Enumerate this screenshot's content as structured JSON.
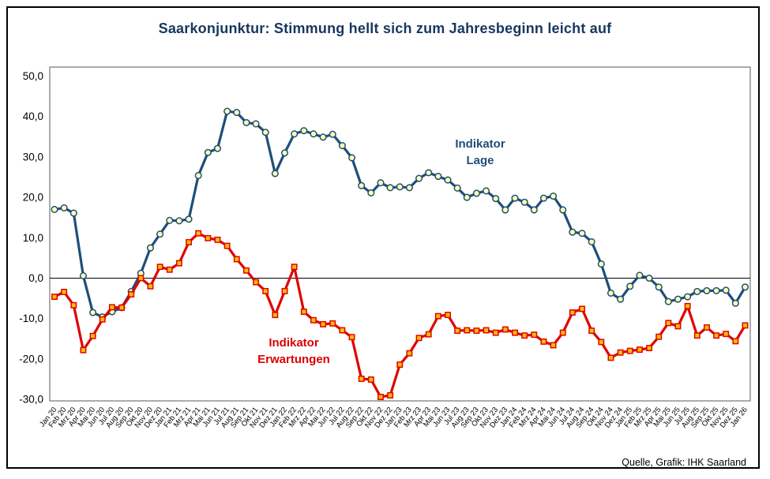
{
  "title": "Saarkonjunktur: Stimmung hellt sich zum Jahresbeginn leicht auf",
  "source": "Quelle, Grafik: IHK Saarland",
  "legend": {
    "lage": {
      "line1": "Indikator",
      "line2": "Lage"
    },
    "erwartungen": {
      "line1": "Indikator",
      "line2": "Erwartungen"
    }
  },
  "colors": {
    "title": "#17375E",
    "lage_line": "#1F4E79",
    "lage_marker_fill": "#FFFFB3",
    "erwartungen_line": "#E00000",
    "erwartungen_marker_fill": "#FFC000",
    "zero_line": "#000000",
    "plot_border": "#595959"
  },
  "chart_data": {
    "type": "line",
    "title": "Saarkonjunktur: Stimmung hellt sich zum Jahresbeginn leicht auf",
    "xlabel": "",
    "ylabel": "",
    "ylim": [
      -30.5,
      52.5
    ],
    "grid": false,
    "zero_line": true,
    "legend_position": "inline-annotations",
    "source": "Quelle, Grafik: IHK Saarland",
    "yticks": {
      "labels": [
        "50,0",
        "40,0",
        "30,0",
        "20,0",
        "10,0",
        "0,0",
        "-10,0",
        "-20,0",
        "-30,0"
      ],
      "values": [
        50,
        40,
        30,
        20,
        10,
        0,
        -10,
        -20,
        -30
      ]
    },
    "categories": [
      "Jan 20",
      "Feb 20",
      "Mrz 20",
      "Apr 20",
      "Mai 20",
      "Jun 20",
      "Jul 20",
      "Aug 20",
      "Sep 20",
      "Okt 20",
      "Nov 20",
      "Dez 20",
      "Jan 21",
      "Feb 21",
      "Mrz 21",
      "Apr 21",
      "Mai 21",
      "Jun 21",
      "Jul 21",
      "Aug 21",
      "Sep 21",
      "Okt 21",
      "Nov 21",
      "Dez 21",
      "Jan 22",
      "Feb 22",
      "Mrz 22",
      "Apr 22",
      "Mai 22",
      "Jun 22",
      "Jul 22",
      "Aug 22",
      "Sep 22",
      "Okt 22",
      "Nov 22",
      "Dez 22",
      "Jan 23",
      "Feb 23",
      "Mrz 23",
      "Apr 23",
      "Mai 23",
      "Jun 23",
      "Jul 23",
      "Aug 23",
      "Sep 23",
      "Okt 23",
      "Nov 23",
      "Dez 23",
      "Jan 24",
      "Feb 24",
      "Mrz 24",
      "Apr 24",
      "Mai 24",
      "Jun 24",
      "Jul 24",
      "Aug 24",
      "Sep 24",
      "Okt 24",
      "Nov 24",
      "Dez 24",
      "Jan 25",
      "Feb 25",
      "Mrz 25",
      "Apr 25",
      "Mai 25",
      "Jun 25",
      "Jul 25",
      "Aug 25",
      "Sep 25",
      "Okt 25",
      "Nov 25",
      "Dez 25",
      "Jan 26"
    ],
    "series": [
      {
        "id": "lage",
        "name": "Indikator Lage",
        "color": "#1F4E79",
        "marker": "circle",
        "marker_fill": "#FFFFB3",
        "values": [
          17.0,
          17.4,
          16.1,
          0.6,
          -8.5,
          -9.6,
          -8.3,
          -7.3,
          -3.3,
          1.2,
          7.5,
          10.9,
          14.3,
          14.2,
          14.6,
          25.4,
          31.1,
          32.1,
          41.3,
          41.0,
          38.5,
          38.2,
          36.1,
          25.9,
          31.0,
          35.7,
          36.5,
          35.7,
          34.9,
          35.6,
          32.8,
          29.8,
          22.9,
          21.1,
          23.6,
          22.4,
          22.6,
          22.4,
          24.7,
          26.1,
          25.2,
          24.3,
          22.3,
          20.0,
          21.0,
          21.6,
          19.7,
          16.9,
          19.8,
          18.8,
          16.9,
          19.8,
          20.3,
          16.9,
          11.4,
          11.1,
          9.0,
          3.5,
          -3.7,
          -5.2,
          -2.0,
          0.7,
          0.0,
          -2.2,
          -5.8,
          -5.2,
          -4.6,
          -3.3,
          -3.1,
          -3.1,
          -3.0,
          -6.2,
          -2.2
        ]
      },
      {
        "id": "erwartungen",
        "name": "Indikator Erwartungen",
        "color": "#E00000",
        "marker": "square",
        "marker_fill": "#FFC000",
        "values": [
          -4.6,
          -3.4,
          -6.7,
          -17.8,
          -14.3,
          -10.2,
          -7.2,
          -7.3,
          -4.0,
          0.0,
          -2.0,
          2.8,
          2.1,
          3.7,
          8.9,
          11.1,
          9.9,
          9.5,
          8.0,
          4.7,
          1.9,
          -1.0,
          -3.2,
          -9.1,
          -3.2,
          2.8,
          -8.3,
          -10.4,
          -11.4,
          -11.2,
          -12.9,
          -14.6,
          -24.9,
          -25.1,
          -29.4,
          -29.0,
          -21.4,
          -18.6,
          -14.8,
          -13.9,
          -9.4,
          -9.1,
          -13.0,
          -12.9,
          -13.0,
          -12.9,
          -13.5,
          -12.7,
          -13.5,
          -14.2,
          -14.0,
          -15.7,
          -16.6,
          -13.5,
          -8.5,
          -7.6,
          -13.0,
          -15.8,
          -19.7,
          -18.4,
          -18.0,
          -17.7,
          -17.3,
          -14.5,
          -11.1,
          -11.9,
          -6.9,
          -14.2,
          -12.2,
          -14.2,
          -13.8,
          -15.6,
          -11.7
        ]
      }
    ]
  }
}
